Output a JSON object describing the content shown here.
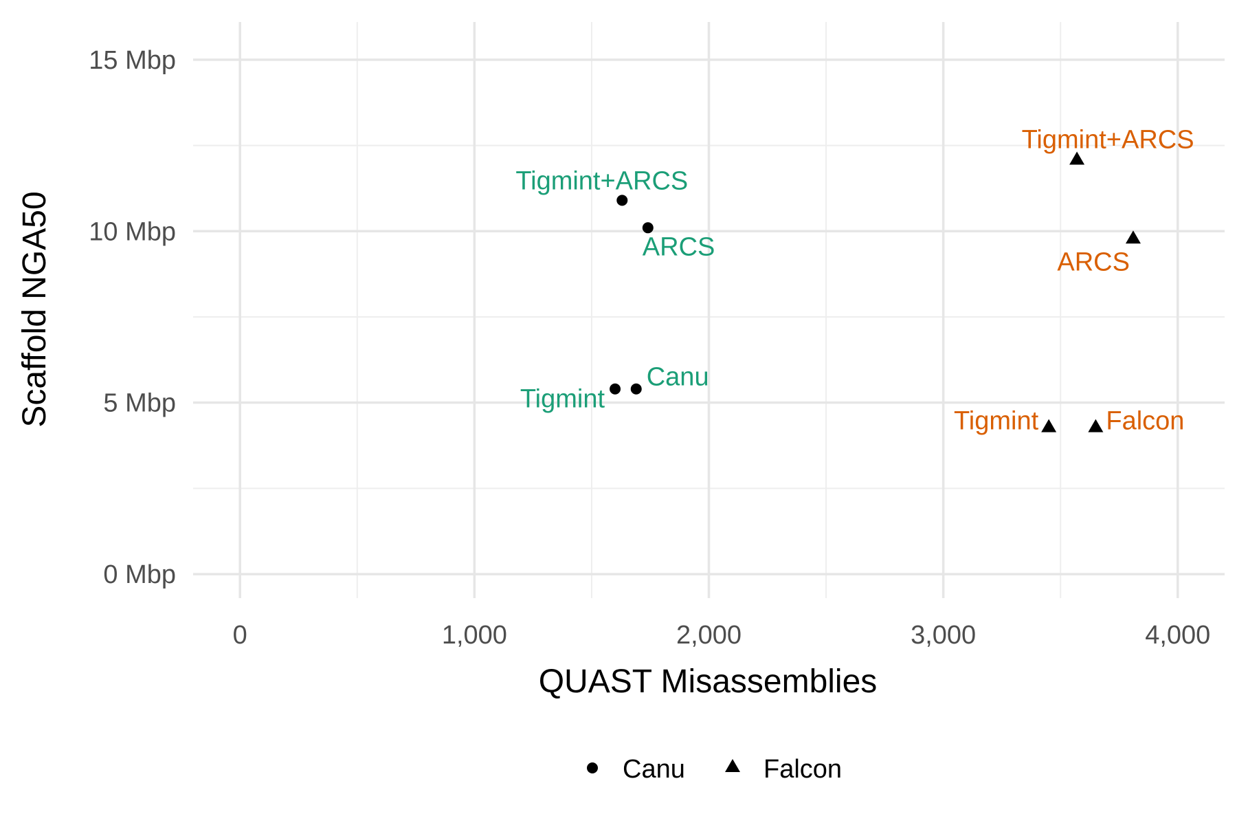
{
  "chart_data": {
    "type": "scatter",
    "xlabel": "QUAST Misassemblies",
    "ylabel": "Scaffold NGA50",
    "xlim": [
      -200,
      4200
    ],
    "ylim": [
      -0.7,
      16.1
    ],
    "x_ticks": [
      0,
      1000,
      2000,
      3000,
      4000
    ],
    "x_tick_labels": [
      "0",
      "1,000",
      "2,000",
      "3,000",
      "4,000"
    ],
    "y_ticks": [
      0,
      5,
      10,
      15
    ],
    "y_tick_labels": [
      "0 Mbp",
      "5 Mbp",
      "10 Mbp",
      "15 Mbp"
    ],
    "y_unit": "Mbp",
    "grid": true,
    "legend_position": "bottom",
    "series": [
      {
        "name": "Canu",
        "shape": "circle",
        "label_color": "#1b9e77",
        "points": [
          {
            "x": 1690,
            "y": 5.4,
            "label": "Canu"
          },
          {
            "x": 1600,
            "y": 5.4,
            "label": "Tigmint"
          },
          {
            "x": 1740,
            "y": 10.1,
            "label": "ARCS"
          },
          {
            "x": 1630,
            "y": 10.9,
            "label": "Tigmint+ARCS"
          }
        ]
      },
      {
        "name": "Falcon",
        "shape": "triangle",
        "label_color": "#d95f02",
        "points": [
          {
            "x": 3650,
            "y": 4.3,
            "label": "Falcon"
          },
          {
            "x": 3450,
            "y": 4.3,
            "label": "Tigmint"
          },
          {
            "x": 3810,
            "y": 9.8,
            "label": "ARCS"
          },
          {
            "x": 3570,
            "y": 12.1,
            "label": "Tigmint+ARCS"
          }
        ]
      }
    ]
  }
}
